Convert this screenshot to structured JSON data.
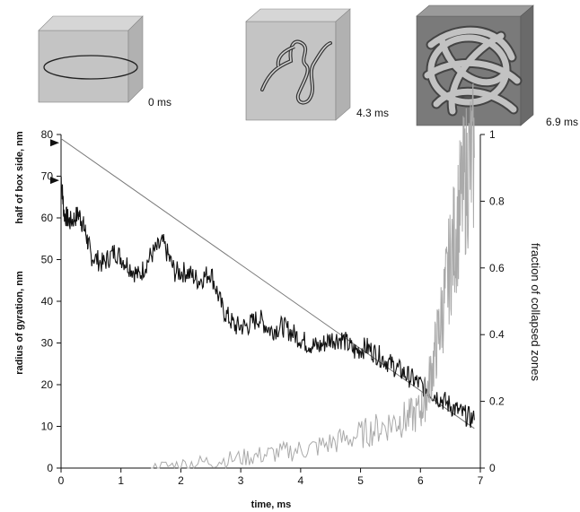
{
  "snapshots": [
    {
      "label": "0 ms",
      "kind": "ring"
    },
    {
      "label": "4.3 ms",
      "kind": "coil"
    },
    {
      "label": "6.9 ms",
      "kind": "globule"
    }
  ],
  "chart_data": {
    "type": "line",
    "xlabel": "time, ms",
    "ylabel_left": "radius of gyration, nm",
    "ylabel_left_upper": "half of box side, nm",
    "ylabel_right": "fraction of collapsed zones",
    "xlim": [
      0,
      7
    ],
    "ylim_left": [
      0,
      80
    ],
    "ylim_right": [
      0,
      1
    ],
    "x_ticks": [
      "0",
      "1",
      "2",
      "3",
      "4",
      "5",
      "6",
      "7"
    ],
    "y_left_ticks": [
      "0",
      "10",
      "20",
      "30",
      "40",
      "50",
      "60",
      "70",
      "80"
    ],
    "y_right_ticks": [
      "0",
      "0.2",
      "0.4",
      "0.6",
      "0.8",
      "1"
    ],
    "markers_left": [
      78,
      69
    ],
    "series": [
      {
        "axis": "left",
        "color": "#777777",
        "x": [
          0,
          6.9
        ],
        "y": [
          79,
          9.5
        ]
      },
      {
        "axis": "left",
        "color": "#111111",
        "x": [
          0,
          0.05,
          0.15,
          0.3,
          0.4,
          0.5,
          0.7,
          0.9,
          1.1,
          1.3,
          1.5,
          1.7,
          1.9,
          2.1,
          2.3,
          2.5,
          2.7,
          2.9,
          3.1,
          3.3,
          3.5,
          3.7,
          3.9,
          4.1,
          4.3,
          4.5,
          4.7,
          4.9,
          5.1,
          5.3,
          5.5,
          5.7,
          5.9,
          6.1,
          6.3,
          6.5,
          6.7,
          6.9
        ],
        "y": [
          70,
          61,
          59,
          61,
          57,
          51,
          49,
          52,
          49,
          46,
          51,
          54,
          47,
          47,
          45,
          47,
          38,
          34,
          34,
          36,
          33,
          34,
          32,
          30,
          29,
          31,
          31,
          28,
          29,
          27,
          25,
          23,
          21,
          19,
          17,
          15,
          13,
          11.5
        ]
      },
      {
        "axis": "right",
        "color": "#aaaaaa",
        "x": [
          1.5,
          2.0,
          2.5,
          3.0,
          3.4,
          3.8,
          4.2,
          4.6,
          5.0,
          5.3,
          5.6,
          5.8,
          6.0,
          6.1,
          6.2,
          6.3,
          6.4,
          6.5,
          6.6,
          6.7,
          6.8,
          6.9
        ],
        "y": [
          0.0,
          0.01,
          0.02,
          0.03,
          0.04,
          0.05,
          0.06,
          0.08,
          0.1,
          0.12,
          0.14,
          0.15,
          0.17,
          0.22,
          0.3,
          0.4,
          0.5,
          0.62,
          0.72,
          0.82,
          0.9,
          0.93
        ]
      }
    ]
  }
}
